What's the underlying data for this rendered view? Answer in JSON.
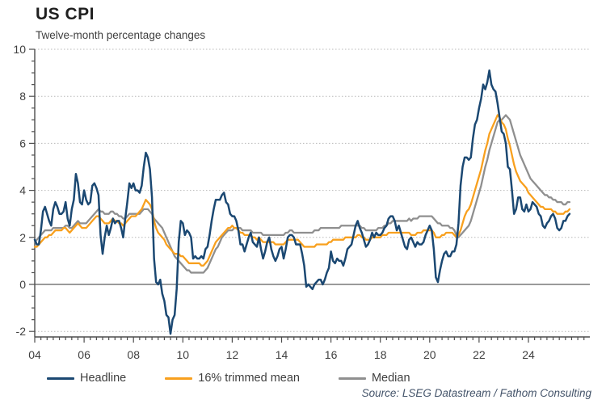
{
  "header": {
    "title": "US CPI",
    "subtitle": "Twelve-month percentage changes"
  },
  "source_note": "Source: LSEG Datastream / Fathom Consulting",
  "legend": [
    {
      "label": "Headline",
      "color": "#1b4872"
    },
    {
      "label": "16% trimmed mean",
      "color": "#f8a01e"
    },
    {
      "label": "Median",
      "color": "#8f8f8f"
    }
  ],
  "chart_data": {
    "type": "line",
    "title": "US CPI",
    "subtitle": "Twelve-month percentage changes",
    "xlabel": "",
    "ylabel": "",
    "x_start_year": 2004,
    "x_frequency": "monthly",
    "x_end": "2025-09",
    "xlim": [
      2004,
      2026.5
    ],
    "ylim": [
      -2.5,
      10.3
    ],
    "grid": "dotted horizontal gridlines, solid zero line",
    "legend_position": "bottom",
    "y_ticks": [
      -2,
      0,
      2,
      4,
      6,
      8,
      10
    ],
    "x_ticks": [
      {
        "year": 2004,
        "label": "04"
      },
      {
        "year": 2006,
        "label": "06"
      },
      {
        "year": 2008,
        "label": "08"
      },
      {
        "year": 2010,
        "label": "10"
      },
      {
        "year": 2012,
        "label": "12"
      },
      {
        "year": 2014,
        "label": "14"
      },
      {
        "year": 2016,
        "label": "16"
      },
      {
        "year": 2018,
        "label": "18"
      },
      {
        "year": 2020,
        "label": "20"
      },
      {
        "year": 2022,
        "label": "22"
      },
      {
        "year": 2024,
        "label": "24"
      }
    ],
    "colors": {
      "grid": "#b8b8b8",
      "zero_line": "#8c8c8c",
      "axis": "#4d4d4d",
      "tick_text": "#3f3f3f"
    },
    "series": [
      {
        "name": "Headline",
        "color": "#1b4872",
        "width": 2.5,
        "values": [
          1.9,
          1.7,
          1.7,
          2.3,
          3.1,
          3.3,
          3.0,
          2.7,
          2.5,
          3.2,
          3.5,
          3.3,
          3.0,
          3.0,
          3.1,
          3.5,
          2.8,
          2.5,
          3.2,
          3.6,
          4.7,
          4.3,
          3.5,
          3.4,
          4.0,
          3.6,
          3.4,
          3.5,
          4.2,
          4.3,
          4.1,
          3.8,
          2.1,
          1.3,
          2.0,
          2.5,
          2.1,
          2.4,
          2.8,
          2.6,
          2.7,
          2.7,
          2.4,
          2.0,
          2.8,
          3.5,
          4.3,
          4.1,
          4.3,
          4.0,
          4.0,
          3.9,
          4.2,
          5.0,
          5.6,
          5.4,
          4.9,
          3.7,
          1.1,
          0.1,
          0.0,
          0.2,
          -0.4,
          -0.7,
          -1.3,
          -1.4,
          -2.1,
          -1.5,
          -1.3,
          -0.2,
          1.8,
          2.7,
          2.6,
          2.1,
          2.3,
          2.2,
          2.0,
          1.1,
          1.2,
          1.1,
          1.1,
          1.2,
          1.1,
          1.5,
          1.6,
          2.1,
          2.7,
          3.2,
          3.6,
          3.6,
          3.6,
          3.8,
          3.9,
          3.5,
          3.4,
          3.0,
          2.9,
          2.9,
          2.7,
          2.3,
          1.7,
          1.7,
          1.4,
          1.7,
          2.0,
          2.2,
          1.8,
          1.7,
          1.6,
          2.0,
          1.5,
          1.1,
          1.4,
          1.8,
          2.0,
          1.5,
          1.2,
          1.0,
          1.2,
          1.5,
          1.6,
          1.1,
          1.5,
          2.0,
          2.1,
          2.1,
          2.0,
          1.7,
          1.7,
          1.7,
          1.3,
          0.8,
          -0.1,
          0.0,
          -0.1,
          -0.2,
          0.0,
          0.1,
          0.2,
          0.2,
          0.0,
          0.2,
          0.5,
          0.7,
          1.4,
          1.0,
          0.9,
          1.1,
          1.0,
          1.0,
          0.8,
          1.1,
          1.5,
          1.6,
          1.7,
          2.1,
          2.5,
          2.7,
          2.4,
          2.2,
          1.9,
          1.6,
          1.7,
          1.9,
          2.2,
          2.0,
          2.2,
          2.1,
          2.1,
          2.2,
          2.4,
          2.5,
          2.8,
          2.9,
          2.9,
          2.7,
          2.3,
          2.5,
          2.2,
          1.9,
          1.6,
          1.5,
          1.9,
          2.0,
          1.8,
          1.6,
          1.8,
          1.7,
          1.7,
          1.8,
          2.1,
          2.3,
          2.5,
          2.3,
          1.5,
          0.3,
          0.1,
          0.6,
          1.0,
          1.3,
          1.4,
          1.2,
          1.2,
          1.4,
          1.4,
          1.7,
          2.6,
          4.2,
          5.0,
          5.4,
          5.4,
          5.3,
          5.4,
          6.2,
          6.8,
          7.0,
          7.5,
          7.9,
          8.5,
          8.3,
          8.6,
          9.1,
          8.5,
          8.3,
          8.2,
          7.7,
          7.1,
          6.5,
          6.4,
          6.0,
          5.0,
          4.9,
          4.0,
          3.0,
          3.2,
          3.7,
          3.7,
          3.2,
          3.1,
          3.4,
          3.1,
          3.2,
          3.5,
          3.4,
          3.3,
          3.0,
          2.9,
          2.5,
          2.4,
          2.6,
          2.7,
          2.9,
          3.0,
          2.8,
          2.4,
          2.3,
          2.4,
          2.7,
          2.7,
          2.9,
          3.0
        ]
      },
      {
        "name": "16% trimmed mean",
        "color": "#f8a01e",
        "width": 2.3,
        "values": [
          1.6,
          1.6,
          1.7,
          1.8,
          1.9,
          2.0,
          2.0,
          2.1,
          2.1,
          2.2,
          2.3,
          2.3,
          2.3,
          2.3,
          2.4,
          2.4,
          2.3,
          2.2,
          2.3,
          2.4,
          2.5,
          2.6,
          2.5,
          2.4,
          2.4,
          2.4,
          2.5,
          2.6,
          2.7,
          2.8,
          2.9,
          2.9,
          2.8,
          2.7,
          2.6,
          2.6,
          2.6,
          2.7,
          2.8,
          2.7,
          2.7,
          2.6,
          2.6,
          2.5,
          2.6,
          2.7,
          2.8,
          2.9,
          2.9,
          2.9,
          3.0,
          3.1,
          3.2,
          3.4,
          3.6,
          3.5,
          3.4,
          3.2,
          2.7,
          2.4,
          2.2,
          2.1,
          2.0,
          1.9,
          1.7,
          1.6,
          1.5,
          1.4,
          1.3,
          1.3,
          1.3,
          1.2,
          1.2,
          1.1,
          1.0,
          0.9,
          0.9,
          0.9,
          0.9,
          0.9,
          0.9,
          0.8,
          0.8,
          0.9,
          1.0,
          1.2,
          1.4,
          1.6,
          1.8,
          1.9,
          2.0,
          2.1,
          2.2,
          2.3,
          2.4,
          2.4,
          2.5,
          2.4,
          2.4,
          2.3,
          2.2,
          2.2,
          2.1,
          2.1,
          2.1,
          2.1,
          2.0,
          2.0,
          1.9,
          2.0,
          1.9,
          1.8,
          1.8,
          1.8,
          1.8,
          1.8,
          1.8,
          1.7,
          1.7,
          1.7,
          1.7,
          1.7,
          1.8,
          1.9,
          1.9,
          1.9,
          1.9,
          1.9,
          1.9,
          1.8,
          1.7,
          1.6,
          1.6,
          1.6,
          1.6,
          1.6,
          1.6,
          1.7,
          1.7,
          1.7,
          1.7,
          1.7,
          1.7,
          1.8,
          1.8,
          1.9,
          1.9,
          1.9,
          1.9,
          1.9,
          1.9,
          2.0,
          2.0,
          2.0,
          2.0,
          2.0,
          2.0,
          2.1,
          2.1,
          2.0,
          2.0,
          1.9,
          1.9,
          1.9,
          2.0,
          2.0,
          2.0,
          2.0,
          2.0,
          2.1,
          2.1,
          2.1,
          2.2,
          2.2,
          2.2,
          2.2,
          2.2,
          2.2,
          2.2,
          2.2,
          2.2,
          2.2,
          2.2,
          2.1,
          2.1,
          2.1,
          2.2,
          2.2,
          2.2,
          2.3,
          2.3,
          2.3,
          2.3,
          2.3,
          2.2,
          2.0,
          2.0,
          2.0,
          2.1,
          2.1,
          2.2,
          2.2,
          2.2,
          2.2,
          2.1,
          2.0,
          2.1,
          2.3,
          2.6,
          2.9,
          3.1,
          3.2,
          3.4,
          3.7,
          4.0,
          4.3,
          4.6,
          4.9,
          5.3,
          5.7,
          6.0,
          6.4,
          6.6,
          6.8,
          7.0,
          7.2,
          7.1,
          6.9,
          6.8,
          6.6,
          6.2,
          5.9,
          5.5,
          5.1,
          4.8,
          4.6,
          4.4,
          4.3,
          4.2,
          4.1,
          3.9,
          3.8,
          3.7,
          3.6,
          3.5,
          3.4,
          3.3,
          3.3,
          3.2,
          3.2,
          3.2,
          3.2,
          3.1,
          3.1,
          3.0,
          3.0,
          3.0,
          3.0,
          3.1,
          3.1,
          3.2
        ]
      },
      {
        "name": "Median",
        "color": "#8f8f8f",
        "width": 2.3,
        "values": [
          1.8,
          1.9,
          2.0,
          2.1,
          2.2,
          2.3,
          2.3,
          2.3,
          2.3,
          2.4,
          2.4,
          2.4,
          2.4,
          2.4,
          2.4,
          2.5,
          2.5,
          2.4,
          2.4,
          2.5,
          2.6,
          2.7,
          2.6,
          2.6,
          2.6,
          2.6,
          2.7,
          2.8,
          2.9,
          3.0,
          3.1,
          3.2,
          3.1,
          3.1,
          3.0,
          3.0,
          3.0,
          3.1,
          3.1,
          3.0,
          3.0,
          2.9,
          2.9,
          2.8,
          2.8,
          2.9,
          3.0,
          3.0,
          3.0,
          3.0,
          3.0,
          3.0,
          3.1,
          3.2,
          3.2,
          3.2,
          3.1,
          3.0,
          2.8,
          2.7,
          2.6,
          2.5,
          2.4,
          2.2,
          2.0,
          1.8,
          1.6,
          1.4,
          1.2,
          1.1,
          1.0,
          0.9,
          0.8,
          0.7,
          0.6,
          0.6,
          0.5,
          0.5,
          0.5,
          0.5,
          0.5,
          0.5,
          0.5,
          0.6,
          0.7,
          0.9,
          1.1,
          1.3,
          1.5,
          1.6,
          1.8,
          2.0,
          2.1,
          2.2,
          2.3,
          2.3,
          2.3,
          2.4,
          2.4,
          2.4,
          2.4,
          2.3,
          2.3,
          2.3,
          2.3,
          2.3,
          2.2,
          2.2,
          2.2,
          2.2,
          2.2,
          2.1,
          2.1,
          2.1,
          2.1,
          2.1,
          2.1,
          2.1,
          2.1,
          2.1,
          2.1,
          2.1,
          2.2,
          2.2,
          2.3,
          2.3,
          2.2,
          2.2,
          2.2,
          2.2,
          2.2,
          2.2,
          2.2,
          2.2,
          2.2,
          2.2,
          2.3,
          2.3,
          2.3,
          2.4,
          2.4,
          2.4,
          2.4,
          2.4,
          2.4,
          2.4,
          2.4,
          2.4,
          2.4,
          2.5,
          2.5,
          2.5,
          2.5,
          2.5,
          2.5,
          2.5,
          2.5,
          2.5,
          2.5,
          2.4,
          2.4,
          2.3,
          2.3,
          2.3,
          2.3,
          2.3,
          2.3,
          2.4,
          2.4,
          2.4,
          2.5,
          2.5,
          2.6,
          2.6,
          2.7,
          2.7,
          2.7,
          2.7,
          2.7,
          2.7,
          2.7,
          2.7,
          2.8,
          2.7,
          2.8,
          2.8,
          2.8,
          2.9,
          2.9,
          2.9,
          2.9,
          2.9,
          2.9,
          2.9,
          2.8,
          2.7,
          2.6,
          2.6,
          2.5,
          2.5,
          2.5,
          2.5,
          2.4,
          2.4,
          2.3,
          2.1,
          2.0,
          2.1,
          2.2,
          2.3,
          2.4,
          2.5,
          2.7,
          3.0,
          3.3,
          3.6,
          3.9,
          4.2,
          4.6,
          5.0,
          5.3,
          5.7,
          6.0,
          6.3,
          6.6,
          6.9,
          7.0,
          7.0,
          7.1,
          7.2,
          7.1,
          7.0,
          6.7,
          6.4,
          6.1,
          5.8,
          5.5,
          5.3,
          5.1,
          4.9,
          4.7,
          4.5,
          4.4,
          4.3,
          4.2,
          4.1,
          4.0,
          3.9,
          3.8,
          3.8,
          3.7,
          3.7,
          3.6,
          3.6,
          3.5,
          3.5,
          3.5,
          3.4,
          3.4,
          3.5,
          3.5
        ]
      }
    ]
  }
}
